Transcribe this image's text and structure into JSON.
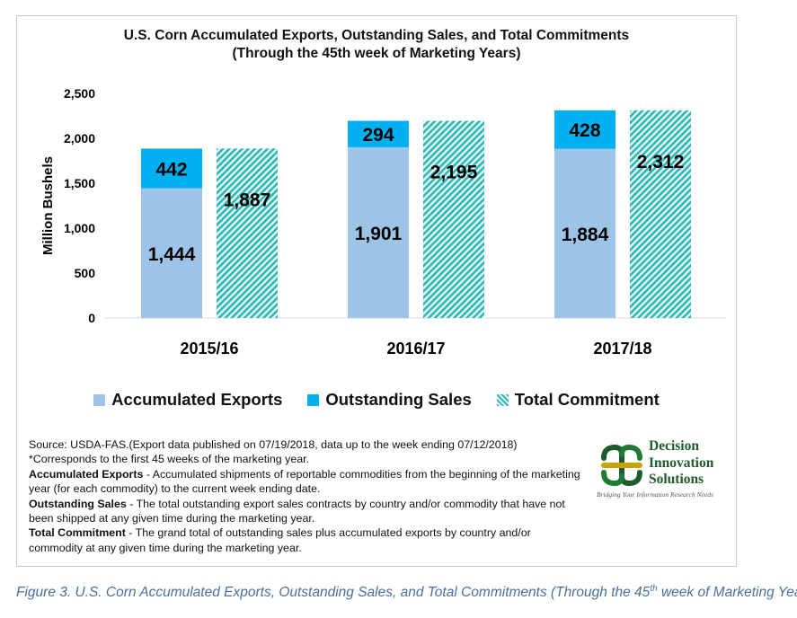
{
  "chart_data": {
    "type": "bar",
    "title": "U.S. Corn Accumulated Exports, Outstanding Sales, and Total Commitments",
    "subtitle": "(Through the 45th week of Marketing Years)",
    "ylabel": "Million Bushels",
    "xlabel": "",
    "ylim": [
      0,
      2500
    ],
    "yticks": [
      "0",
      "500",
      "1,000",
      "1,500",
      "2,000",
      "2,500"
    ],
    "categories": [
      "2015/16",
      "2016/17",
      "2017/18"
    ],
    "series": [
      {
        "name": "Accumulated Exports",
        "values": [
          1444,
          1901,
          1884
        ],
        "labels": [
          "1,444",
          "1,901",
          "1,884"
        ],
        "color": "#9dc3e6",
        "stack": "a"
      },
      {
        "name": "Outstanding Sales",
        "values": [
          442,
          294,
          428
        ],
        "labels": [
          "442",
          "294",
          "428"
        ],
        "color": "#00b0f0",
        "stack": "a"
      },
      {
        "name": "Total Commitment",
        "values": [
          1887,
          2195,
          2312
        ],
        "labels": [
          "1,887",
          "2,195",
          "2,312"
        ],
        "color": "#2fb7b7",
        "stack": "b",
        "pattern": "diagonal-hatch"
      }
    ],
    "grid": false,
    "legend_position": "bottom"
  },
  "legend": [
    {
      "label": "Accumulated Exports",
      "color": "#9dc3e6"
    },
    {
      "label": "Outstanding Sales",
      "color": "#00b0f0"
    },
    {
      "label": "Total Commitment",
      "color": "#2fb7b7"
    }
  ],
  "notes": {
    "source": "Source: USDA-FAS.(Export data published  on 07/19/2018, data up to the week ending 07/12/2018)",
    "footnote": "*Corresponds to the first 45 weeks of the marketing year.",
    "def1_term": "Accumulated Exports",
    "def1_text": " - Accumulated shipments of reportable commodities from the beginning of the marketing year (for each commodity) to the current week ending date.",
    "def2_term": "Outstanding Sales",
    "def2_text": " - The total outstanding export sales contracts by country and/or commodity that have not been shipped at any given time during the marketing year.",
    "def3_term": "Total Commitment",
    "def3_text": " - The grand total of outstanding sales plus accumulated exports by country and/or commodity at any given time during the marketing year."
  },
  "logo": {
    "line1": "Decision",
    "line2": "Innovation",
    "line3": "Solutions",
    "tagline": "Bridging Your Information Research Needs",
    "color": "#1e5b2b",
    "accent": "#c9a400"
  },
  "caption": {
    "before": "Figure 3. U.S. Corn Accumulated Exports, Outstanding Sales, and Total Commitments (Through the 45",
    "sup": "th",
    "after": " week of Marketing Year)"
  }
}
